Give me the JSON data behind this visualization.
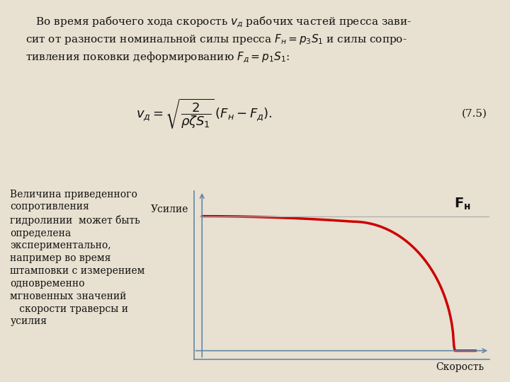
{
  "background_color": "#e8e0d0",
  "top_text_lines": [
    "   Во время рабочего хода скорость vд рабочих частей пресса зави-",
    "сит от разности номинальной силы пресса Fн = p₃S₁ и силы сопро-",
    "тивления поковки деформированию Fд = p₁S₁:"
  ],
  "formula_label": "(7.5)",
  "left_text_lines": [
    "Величина приведенного",
    "сопротивления",
    "гидролинии  может быть",
    "определена",
    "экспериментально,",
    "например во время",
    "штамповки с измерением",
    "одновременно",
    "мгновенных значений",
    "   скорости траверсы и",
    "усилия"
  ],
  "ylabel": "Усилие",
  "xlabel": "Скорость",
  "fn_label": "Fн",
  "curve_color": "#cc0000",
  "axis_color": "#6688aa",
  "line_color": "#aaaaaa",
  "fn_line_color": "#aaaaaa",
  "text_color": "#111111"
}
